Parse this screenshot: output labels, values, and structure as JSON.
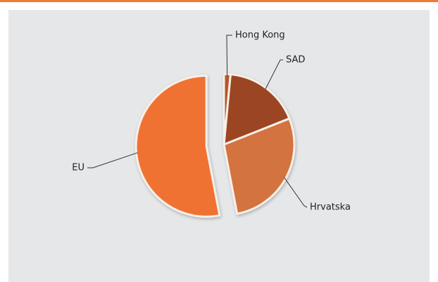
{
  "chart_data": {
    "type": "pie",
    "categories": [
      "Hong Kong",
      "SAD",
      "Hrvatska",
      "EU"
    ],
    "values": [
      1.5,
      17.5,
      28,
      53
    ],
    "colors": [
      "#b5562a",
      "#9c4520",
      "#d3733f",
      "#f07232"
    ]
  }
}
